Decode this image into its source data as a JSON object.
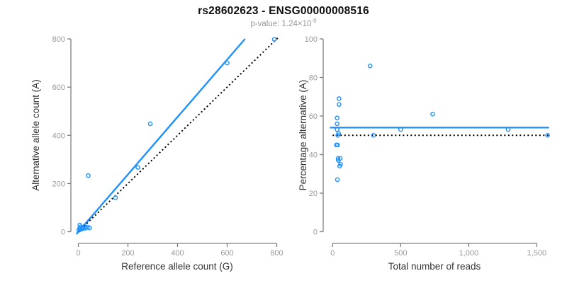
{
  "header": {
    "title": "rs28602623 - ENSG00000008516",
    "pvalue_label": "p-value: 1.24×10",
    "pvalue_exponent": "-9"
  },
  "colors": {
    "accent_blue": "#1E90FF",
    "identity_line": "#000000",
    "axis_line": "#808080",
    "tick_label": "#999999"
  },
  "chart_data": [
    {
      "type": "scatter",
      "name": "allele-count-scatter",
      "xlabel": "Reference allele count (G)",
      "ylabel": "Alternative allele count (A)",
      "xlim": [
        0,
        800
      ],
      "ylim": [
        0,
        800
      ],
      "x_ticks": [
        0,
        200,
        400,
        600,
        800
      ],
      "x_tick_labels": [
        "0",
        "200",
        "400",
        "600",
        "800"
      ],
      "y_ticks": [
        0,
        200,
        400,
        600,
        800
      ],
      "y_tick_labels": [
        "0",
        "200",
        "400",
        "600",
        "800"
      ],
      "grid": false,
      "legend": "none",
      "point_color": "#1E90FF",
      "points": [
        [
          2,
          6
        ],
        [
          5,
          14
        ],
        [
          7,
          9
        ],
        [
          10,
          20
        ],
        [
          13,
          11
        ],
        [
          16,
          16
        ],
        [
          20,
          13
        ],
        [
          24,
          21
        ],
        [
          30,
          15
        ],
        [
          37,
          19
        ],
        [
          45,
          16
        ],
        [
          6,
          28
        ],
        [
          40,
          233
        ],
        [
          150,
          141
        ],
        [
          240,
          267
        ],
        [
          290,
          448
        ],
        [
          600,
          700
        ],
        [
          790,
          798
        ]
      ],
      "lines": [
        {
          "name": "fit-line",
          "style": "solid",
          "color": "#1E90FF",
          "from": [
            -8,
            -10
          ],
          "to": [
            672,
            800
          ]
        },
        {
          "name": "identity-line",
          "style": "dotted",
          "color": "#000000",
          "from": [
            0,
            0
          ],
          "to": [
            805,
            805
          ]
        }
      ]
    },
    {
      "type": "scatter",
      "name": "percentage-vs-reads-scatter",
      "xlabel": "Total number of reads",
      "ylabel": "Percentage alternative (A)",
      "xlim": [
        0,
        1600
      ],
      "ylim": [
        0,
        100
      ],
      "x_ticks": [
        0,
        500,
        1000,
        1500
      ],
      "x_tick_labels": [
        "0",
        "500",
        "1,000",
        "1,500"
      ],
      "y_ticks": [
        0,
        20,
        40,
        60,
        80,
        100
      ],
      "y_tick_labels": [
        "0",
        "20",
        "40",
        "60",
        "80",
        "100"
      ],
      "grid": false,
      "legend": "none",
      "point_color": "#1E90FF",
      "points": [
        [
          275,
          86
        ],
        [
          47,
          69
        ],
        [
          47,
          66
        ],
        [
          33,
          59
        ],
        [
          33,
          56
        ],
        [
          33,
          53
        ],
        [
          44,
          51
        ],
        [
          38,
          50
        ],
        [
          300,
          50
        ],
        [
          28,
          45
        ],
        [
          36,
          45
        ],
        [
          40,
          38
        ],
        [
          55,
          38
        ],
        [
          42,
          37
        ],
        [
          58,
          35
        ],
        [
          52,
          34
        ],
        [
          35,
          27
        ],
        [
          500,
          53
        ],
        [
          735,
          61
        ],
        [
          1290,
          53
        ],
        [
          1580,
          50
        ]
      ],
      "lines": [
        {
          "name": "mean-percentage-line",
          "style": "solid",
          "color": "#1E90FF",
          "from": [
            -20,
            54
          ],
          "to": [
            1590,
            54
          ]
        },
        {
          "name": "expected-50pct-line",
          "style": "dotted",
          "color": "#000000",
          "from": [
            0,
            50
          ],
          "to": [
            1590,
            50
          ]
        }
      ]
    }
  ]
}
